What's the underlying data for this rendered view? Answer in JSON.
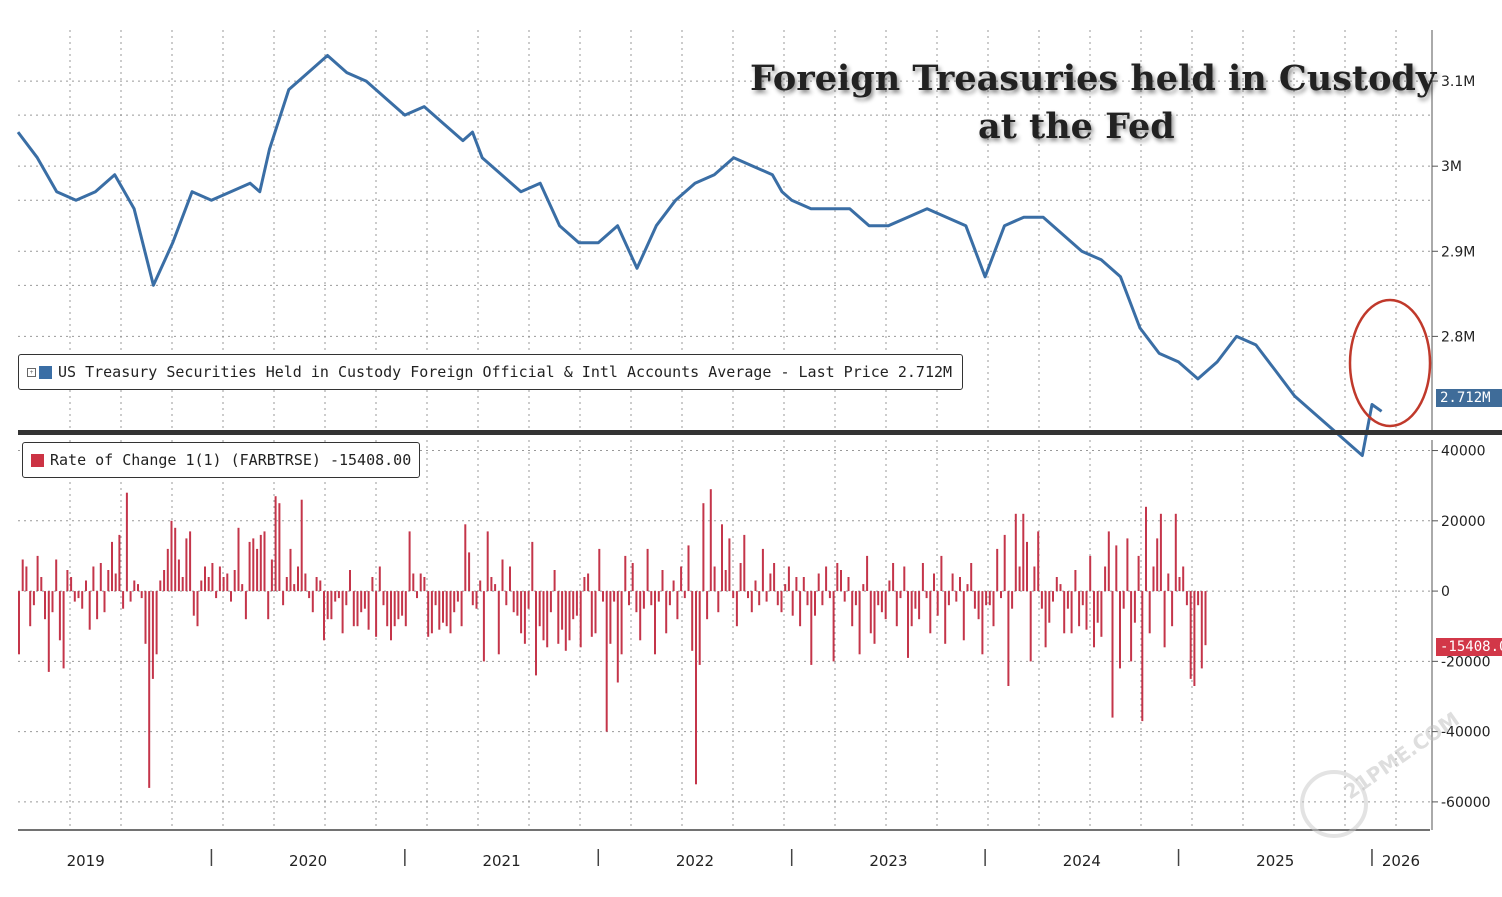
{
  "titles": {
    "line1": "Foreign Treasuries held in Custody",
    "line2": "at the Fed"
  },
  "legend_top": {
    "label": "US Treasury Securities Held in Custody Foreign Official & Intl Accounts Average - Last Price 2.712M",
    "color": "#3a6ea5"
  },
  "legend_bottom": {
    "label": "Rate of Change 1(1) (FARBTRSE)  -15408.00",
    "color": "#cc3344"
  },
  "last_value_tags": {
    "top": "2.712M",
    "bottom": "-15408.0"
  },
  "watermark": "21PME.COM",
  "chart_data": [
    {
      "type": "line",
      "title": "US Treasury Securities Held in Custody Foreign Official & Intl Accounts Average",
      "x_unit": "year",
      "xlim": [
        2019.0,
        2026.3
      ],
      "ylim": [
        2.69,
        3.16
      ],
      "ytick_values": [
        2.8,
        2.9,
        3.0,
        3.1
      ],
      "ytick_labels": [
        "2.8M",
        "2.9M",
        "3M",
        "3.1M"
      ],
      "x": [
        2019.0,
        2019.1,
        2019.2,
        2019.3,
        2019.4,
        2019.5,
        2019.6,
        2019.7,
        2019.8,
        2019.9,
        2020.0,
        2020.1,
        2020.2,
        2020.25,
        2020.3,
        2020.4,
        2020.5,
        2020.6,
        2020.7,
        2020.8,
        2020.9,
        2021.0,
        2021.1,
        2021.2,
        2021.3,
        2021.35,
        2021.4,
        2021.5,
        2021.6,
        2021.7,
        2021.8,
        2021.9,
        2022.0,
        2022.1,
        2022.2,
        2022.3,
        2022.4,
        2022.5,
        2022.6,
        2022.7,
        2022.8,
        2022.9,
        2022.95,
        2023.0,
        2023.1,
        2023.2,
        2023.3,
        2023.4,
        2023.5,
        2023.6,
        2023.7,
        2023.8,
        2023.9,
        2024.0,
        2024.1,
        2024.2,
        2024.3,
        2024.4,
        2024.5,
        2024.6,
        2024.7,
        2024.8,
        2024.9,
        2025.0,
        2025.1,
        2025.2,
        2025.3,
        2025.4,
        2025.5,
        2025.6,
        2025.7,
        2025.8,
        2025.9,
        2025.95,
        2026.0,
        2026.05
      ],
      "values": [
        3.04,
        3.01,
        2.97,
        2.96,
        2.97,
        2.99,
        2.95,
        2.86,
        2.91,
        2.97,
        2.96,
        2.97,
        2.98,
        2.97,
        3.02,
        3.09,
        3.11,
        3.13,
        3.11,
        3.1,
        3.08,
        3.06,
        3.07,
        3.05,
        3.03,
        3.04,
        3.01,
        2.99,
        2.97,
        2.98,
        2.93,
        2.91,
        2.91,
        2.93,
        2.88,
        2.93,
        2.96,
        2.98,
        2.99,
        3.01,
        3.0,
        2.99,
        2.97,
        2.96,
        2.95,
        2.95,
        2.95,
        2.93,
        2.93,
        2.94,
        2.95,
        2.94,
        2.93,
        2.87,
        2.93,
        2.94,
        2.94,
        2.92,
        2.9,
        2.89,
        2.87,
        2.81,
        2.78,
        2.77,
        2.75,
        2.77,
        2.8,
        2.79,
        2.76,
        2.73,
        2.71,
        2.69,
        2.67,
        2.66,
        2.72,
        2.712
      ],
      "last_price": 2.712
    },
    {
      "type": "bar",
      "title": "Rate of Change 1(1) (FARBTRSE)",
      "x_unit": "year",
      "xlim": [
        2019.0,
        2026.3
      ],
      "ylim": [
        -68000,
        43000
      ],
      "ytick_values": [
        40000,
        20000,
        0,
        -20000,
        -40000,
        -60000
      ],
      "ytick_labels": [
        "40000",
        "20000",
        "0",
        "-20000",
        "-40000",
        "-60000"
      ],
      "x_start": 2019.0,
      "x_step": 0.01923,
      "values": [
        -18000,
        9000,
        7000,
        -10000,
        -4000,
        10000,
        4000,
        -8000,
        -23000,
        -6000,
        9000,
        -14000,
        -22000,
        6000,
        4000,
        -3000,
        -2000,
        -5000,
        3000,
        -11000,
        7000,
        -8000,
        8000,
        -6000,
        6000,
        14000,
        5000,
        16000,
        -5000,
        28000,
        -3000,
        3000,
        2000,
        -2000,
        -15000,
        -56000,
        -25000,
        -18000,
        3000,
        6000,
        12000,
        20000,
        18000,
        9000,
        4000,
        15000,
        17000,
        -7000,
        -10000,
        3000,
        7000,
        4000,
        8000,
        -2000,
        7000,
        4000,
        5000,
        -3000,
        6000,
        18000,
        2000,
        -8000,
        14000,
        15000,
        12000,
        16000,
        17000,
        -8000,
        9000,
        27000,
        25000,
        -4000,
        4000,
        12000,
        2000,
        7000,
        26000,
        5000,
        -2000,
        -6000,
        4000,
        3000,
        -14000,
        -8000,
        -8000,
        -3000,
        -2000,
        -12000,
        -4000,
        6000,
        -10000,
        -10000,
        -6000,
        -5000,
        -11000,
        4000,
        -13000,
        7000,
        -4000,
        -10000,
        -14000,
        -10000,
        -8000,
        -7000,
        -10000,
        17000,
        5000,
        -2000,
        5000,
        4000,
        -13000,
        -12000,
        -4000,
        -11000,
        -9000,
        -10000,
        -12000,
        -6000,
        -3000,
        -10000,
        19000,
        11000,
        -4000,
        -5000,
        3000,
        -20000,
        17000,
        4000,
        2000,
        -18000,
        9000,
        -4000,
        7000,
        -6000,
        -7000,
        -12000,
        -15000,
        -5000,
        14000,
        -24000,
        -10000,
        -14000,
        -16000,
        -6000,
        6000,
        -15000,
        -11000,
        -17000,
        -14000,
        -8000,
        -7000,
        -16000,
        4000,
        5000,
        -13000,
        -12000,
        12000,
        -3000,
        -40000,
        -15000,
        -3000,
        -26000,
        -18000,
        10000,
        -4000,
        8000,
        -6000,
        -14000,
        -5000,
        12000,
        -4000,
        -18000,
        -3000,
        6000,
        -12000,
        -4000,
        3000,
        -8000,
        7000,
        -2000,
        13000,
        -17000,
        -55000,
        -21000,
        25000,
        -8000,
        29000,
        7000,
        -6000,
        19000,
        6000,
        15000,
        -2000,
        -10000,
        8000,
        16000,
        -2000,
        -6000,
        3000,
        -4000,
        12000,
        -3000,
        5000,
        8000,
        -4000,
        -6000,
        2000,
        7000,
        -7000,
        4000,
        -10000,
        4000,
        -4000,
        -21000,
        -7000,
        5000,
        -4000,
        7000,
        -2000,
        -20000,
        8000,
        6000,
        -3000,
        4000,
        -10000,
        -4000,
        -18000,
        2000,
        10000,
        -12000,
        -15000,
        -4000,
        -6000,
        -8000,
        3000,
        8000,
        -10000,
        -2000,
        7000,
        -19000,
        -10000,
        -5000,
        -8000,
        8000,
        -2000,
        -12000,
        5000,
        -7000,
        10000,
        -15000,
        -4000,
        5000,
        -3000,
        4000,
        -14000,
        2000,
        8000,
        -5000,
        -8000,
        -18000,
        -4000,
        -4000,
        -10000,
        12000,
        -2000,
        16000,
        -27000,
        -5000,
        22000,
        7000,
        22000,
        14000,
        -20000,
        7000,
        17000,
        -5000,
        -16000,
        -9000,
        -3000,
        4000,
        2000,
        -12000,
        -5000,
        -12000,
        6000,
        -10000,
        -4000,
        -11000,
        10000,
        -16000,
        -9000,
        -13000,
        7000,
        17000,
        -36000,
        13000,
        -22000,
        -5000,
        15000,
        -20000,
        -9000,
        10000,
        -37000,
        24000,
        -12000,
        7000,
        15000,
        22000,
        -16000,
        5000,
        -10000,
        22000,
        4000,
        7000,
        -4000,
        -25000,
        -27000,
        -4000,
        -22000,
        -15408
      ],
      "last_value": -15408.0
    }
  ],
  "x_axis": {
    "year_labels": [
      "2019",
      "2020",
      "2021",
      "2022",
      "2023",
      "2024",
      "2025",
      "2026"
    ]
  },
  "colors": {
    "line": "#3a6ea5",
    "bars": "#c4354a",
    "grid": "#999999",
    "separator": "#333333",
    "highlight": "#c0392b"
  }
}
